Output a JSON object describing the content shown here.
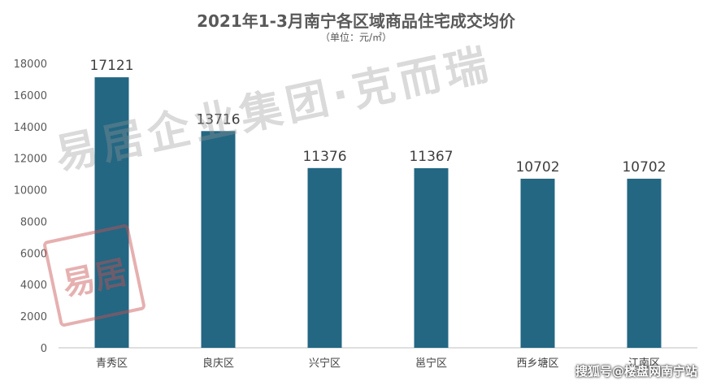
{
  "chart_data": {
    "type": "bar",
    "title": "2021年1-3月南宁各区域商品住宅成交均价",
    "subtitle": "（单位：元/㎡）",
    "categories": [
      "青秀区",
      "良庆区",
      "兴宁区",
      "邕宁区",
      "西乡塘区",
      "江南区"
    ],
    "values": [
      17121,
      13716,
      11376,
      11367,
      10702,
      10702
    ],
    "ylim": [
      0,
      18000
    ],
    "yticks": [
      0,
      2000,
      4000,
      6000,
      8000,
      10000,
      12000,
      14000,
      16000,
      18000
    ],
    "bar_color": "#236783",
    "grid": false,
    "legend": "none"
  },
  "watermark": "易居企业集团·克而瑞",
  "stamp": "易居",
  "source_credit": "搜狐号@楼盘网南宁站"
}
